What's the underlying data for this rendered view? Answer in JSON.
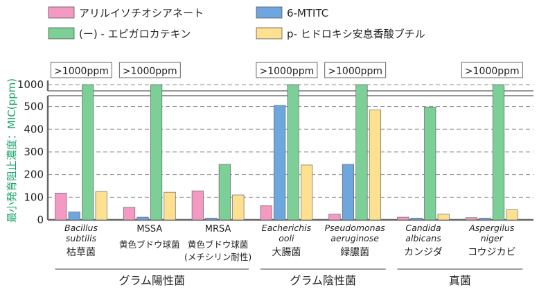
{
  "chart_data": {
    "type": "bar",
    "y_axis_label": "最小発育阻止濃度：MIC(ppm)",
    "ylim": [
      0,
      1000
    ],
    "y_break": [
      600,
      950
    ],
    "y_ticks": [
      "0",
      "100",
      "200",
      "300",
      "400",
      "500",
      "1000"
    ],
    "y_tick_values": [
      0,
      100,
      200,
      300,
      400,
      500,
      1000
    ],
    "grid": "dashed-horizontal",
    "legend_position": "top",
    "series": [
      {
        "name": "アリルイソチオシアネート",
        "color": "#f499c1",
        "values": [
          118,
          55,
          128,
          62,
          25,
          12,
          10
        ]
      },
      {
        "name": "6-MTITC",
        "color": "#6ea6de",
        "values": [
          35,
          12,
          8,
          505,
          245,
          8,
          8
        ]
      },
      {
        "name": "(ー) - エピガロカテキン",
        "color": "#7dcf98",
        "values": [
          1000,
          1000,
          245,
          1000,
          1000,
          498,
          1000
        ]
      },
      {
        "name": "p- ヒドロキシ安息香酸ブチル",
        "color": "#fde090",
        "values": [
          125,
          122,
          110,
          242,
          485,
          25,
          45
        ]
      }
    ],
    "categories": [
      {
        "sci": [
          "Bacillus",
          "subtilis"
        ],
        "abbr": "",
        "jp": [
          "枯草菌"
        ]
      },
      {
        "sci": [],
        "abbr": "MSSA",
        "jp": [
          "黄色ブドウ球菌"
        ]
      },
      {
        "sci": [],
        "abbr": "MRSA",
        "jp": [
          "黄色ブドウ球菌",
          "(メチシリン耐性)"
        ]
      },
      {
        "sci": [
          "Eacherichis",
          "ooli"
        ],
        "abbr": "",
        "jp": [
          "大腸菌"
        ]
      },
      {
        "sci": [
          "Pseudomonas",
          "aeruginose"
        ],
        "abbr": "",
        "jp": [
          "緑膿菌"
        ]
      },
      {
        "sci": [
          "Candida",
          "albicans"
        ],
        "abbr": "",
        "jp": [
          "カンジダ"
        ]
      },
      {
        "sci": [
          "Aspergilus",
          "niger"
        ],
        "abbr": "",
        "jp": [
          "コウジカビ"
        ]
      }
    ],
    "annotations": [
      {
        "category_index": 0,
        "text": ">1000ppm"
      },
      {
        "category_index": 1,
        "text": ">1000ppm"
      },
      {
        "category_index": 3,
        "text": ">1000ppm"
      },
      {
        "category_index": 4,
        "text": ">1000ppm"
      },
      {
        "category_index": 6,
        "text": ">1000ppm"
      }
    ],
    "groups": [
      {
        "label": "グラム陽性菌",
        "from": 0,
        "to": 2
      },
      {
        "label": "グラム陰性菌",
        "from": 3,
        "to": 4
      },
      {
        "label": "真菌",
        "from": 5,
        "to": 6
      }
    ]
  }
}
